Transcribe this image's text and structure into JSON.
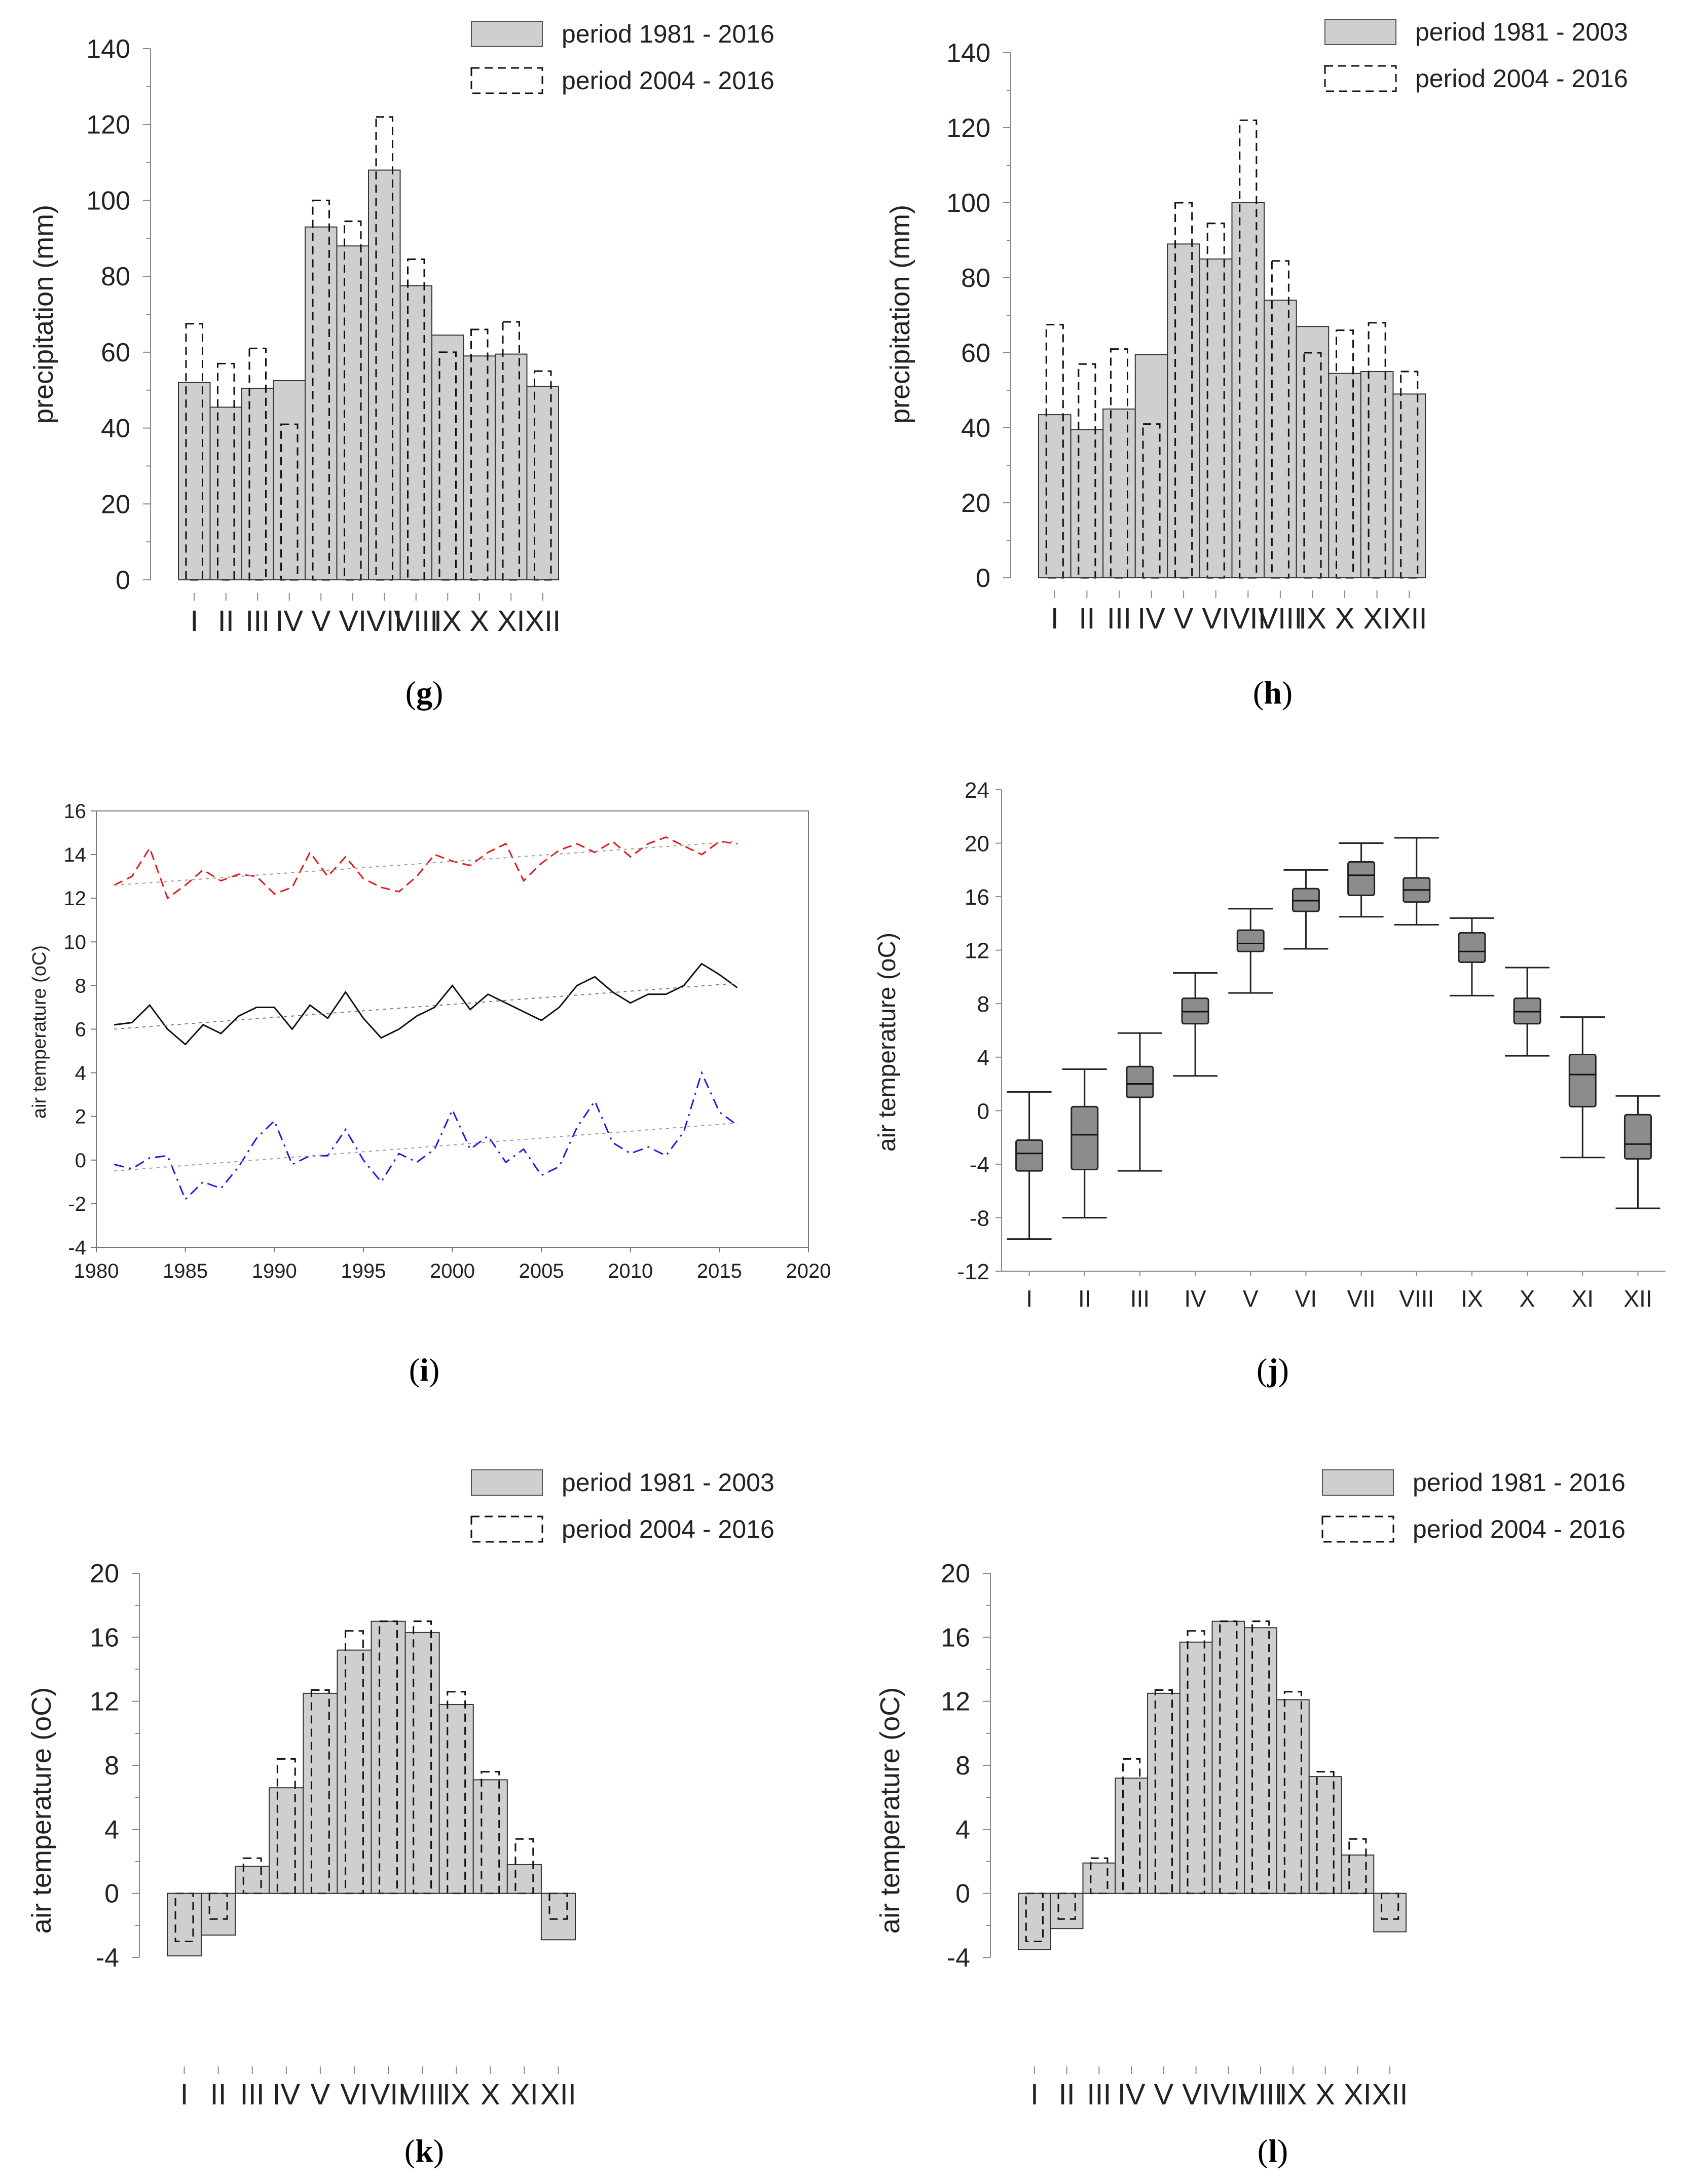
{
  "chart_data": [
    {
      "panel": "g",
      "type": "bar",
      "categories": [
        "I",
        "II",
        "III",
        "IV",
        "V",
        "VI",
        "VII",
        "VIII",
        "IX",
        "X",
        "XI",
        "XII"
      ],
      "series": [
        {
          "name": "period 1981 - 2016",
          "style": "filled",
          "values": [
            52,
            45.5,
            50.5,
            52.5,
            93,
            88,
            108,
            77.5,
            64.5,
            59,
            59.5,
            51
          ]
        },
        {
          "name": "period 2004 - 2016",
          "style": "dashed",
          "values": [
            67.5,
            57,
            61,
            41,
            100,
            94.5,
            122,
            84.5,
            60,
            66,
            68,
            55
          ]
        }
      ],
      "ylabel": "precipitation (mm)",
      "ylim": [
        0,
        140
      ],
      "yticks": [
        "0",
        "20",
        "40",
        "60",
        "80",
        "100",
        "120",
        "140"
      ],
      "panel_label": "g"
    },
    {
      "panel": "h",
      "type": "bar",
      "categories": [
        "I",
        "II",
        "III",
        "IV",
        "V",
        "VI",
        "VII",
        "VIII",
        "IX",
        "X",
        "XI",
        "XII"
      ],
      "series": [
        {
          "name": "period 1981 - 2003",
          "style": "filled",
          "values": [
            43.5,
            39.5,
            45,
            59.5,
            89,
            85,
            100,
            74,
            67,
            54.5,
            55,
            49
          ]
        },
        {
          "name": "period 2004 - 2016",
          "style": "dashed",
          "values": [
            67.5,
            57,
            61,
            41,
            100,
            94.5,
            122,
            84.5,
            60,
            66,
            68,
            55
          ]
        }
      ],
      "ylabel": "precipitation (mm)",
      "ylim": [
        0,
        140
      ],
      "yticks": [
        "0",
        "20",
        "40",
        "60",
        "80",
        "100",
        "120",
        "140"
      ],
      "panel_label": "h"
    },
    {
      "panel": "i",
      "type": "line",
      "x": [
        1981,
        1982,
        1983,
        1984,
        1985,
        1986,
        1987,
        1988,
        1989,
        1990,
        1991,
        1992,
        1993,
        1994,
        1995,
        1996,
        1997,
        1998,
        1999,
        2000,
        2001,
        2002,
        2003,
        2004,
        2005,
        2006,
        2007,
        2008,
        2009,
        2010,
        2011,
        2012,
        2013,
        2014,
        2015,
        2016
      ],
      "series": [
        {
          "name": "max",
          "color": "#e8141b",
          "dash": "dashed",
          "values": [
            12.6,
            13.0,
            14.3,
            12.0,
            12.6,
            13.3,
            12.8,
            13.1,
            13.0,
            12.2,
            12.5,
            14.1,
            13.0,
            13.9,
            12.9,
            12.5,
            12.3,
            13.0,
            14.0,
            13.7,
            13.5,
            14.1,
            14.5,
            12.8,
            13.6,
            14.2,
            14.5,
            14.1,
            14.6,
            13.9,
            14.5,
            14.8,
            14.4,
            14.0,
            14.6,
            14.5
          ]
        },
        {
          "name": "mean",
          "color": "#111111",
          "dash": "solid",
          "values": [
            6.2,
            6.3,
            7.1,
            6.0,
            5.3,
            6.2,
            5.8,
            6.6,
            7.0,
            7.0,
            6.0,
            7.1,
            6.5,
            7.7,
            6.5,
            5.6,
            6.0,
            6.6,
            7.0,
            8.0,
            6.9,
            7.6,
            7.2,
            6.8,
            6.4,
            7.0,
            8.0,
            8.4,
            7.7,
            7.2,
            7.6,
            7.6,
            8.0,
            9.0,
            8.5,
            7.9
          ]
        },
        {
          "name": "min",
          "color": "#1a1ae8",
          "dash": "dashdot",
          "values": [
            -0.2,
            -0.4,
            0.1,
            0.2,
            -1.8,
            -1.0,
            -1.3,
            -0.3,
            1.0,
            1.8,
            -0.2,
            0.2,
            0.2,
            1.4,
            0.0,
            -1.0,
            0.3,
            -0.1,
            0.5,
            2.3,
            0.5,
            1.1,
            -0.1,
            0.5,
            -0.7,
            -0.3,
            1.5,
            2.7,
            0.8,
            0.3,
            0.6,
            0.2,
            1.3,
            4.0,
            2.2,
            1.6
          ]
        },
        {
          "name": "trend max",
          "color": "#999999",
          "dash": "dotted",
          "values_at_ends": [
            12.6,
            14.6
          ]
        },
        {
          "name": "trend mean",
          "color": "#777777",
          "dash": "dotted",
          "values_at_ends": [
            6.0,
            8.1
          ]
        },
        {
          "name": "trend min",
          "color": "#999999",
          "dash": "dotted",
          "values_at_ends": [
            -0.5,
            1.7
          ]
        }
      ],
      "ylabel": "air temperature (oC)",
      "xlim": [
        1980,
        2020
      ],
      "ylim": [
        -4,
        16
      ],
      "xticks": [
        "1980",
        "1985",
        "1990",
        "1995",
        "2000",
        "2005",
        "2010",
        "2015",
        "2020"
      ],
      "yticks": [
        "-4",
        "-2",
        "0",
        "2",
        "4",
        "6",
        "8",
        "10",
        "12",
        "14",
        "16"
      ],
      "panel_label": "i"
    },
    {
      "panel": "j",
      "type": "box",
      "categories": [
        "I",
        "II",
        "III",
        "IV",
        "V",
        "VI",
        "VII",
        "VIII",
        "IX",
        "X",
        "XI",
        "XII"
      ],
      "boxes": [
        {
          "min": -9.6,
          "q1": -4.5,
          "median": -3.2,
          "q3": -2.2,
          "max": 1.4
        },
        {
          "min": -8.0,
          "q1": -4.4,
          "median": -1.8,
          "q3": 0.3,
          "max": 3.1
        },
        {
          "min": -4.5,
          "q1": 1.0,
          "median": 2.0,
          "q3": 3.3,
          "max": 5.8
        },
        {
          "min": 2.6,
          "q1": 6.5,
          "median": 7.4,
          "q3": 8.4,
          "max": 10.3
        },
        {
          "min": 8.8,
          "q1": 11.9,
          "median": 12.5,
          "q3": 13.5,
          "max": 15.1
        },
        {
          "min": 12.1,
          "q1": 14.9,
          "median": 15.7,
          "q3": 16.6,
          "max": 18.0
        },
        {
          "min": 14.5,
          "q1": 16.1,
          "median": 17.6,
          "q3": 18.6,
          "max": 20.0
        },
        {
          "min": 13.9,
          "q1": 15.6,
          "median": 16.5,
          "q3": 17.4,
          "max": 20.4
        },
        {
          "min": 8.6,
          "q1": 11.1,
          "median": 11.9,
          "q3": 13.3,
          "max": 14.4
        },
        {
          "min": 4.1,
          "q1": 6.5,
          "median": 7.4,
          "q3": 8.4,
          "max": 10.7
        },
        {
          "min": -3.5,
          "q1": 0.3,
          "median": 2.7,
          "q3": 4.2,
          "max": 7.0
        },
        {
          "min": -7.3,
          "q1": -3.6,
          "median": -2.5,
          "q3": -0.3,
          "max": 1.1
        }
      ],
      "ylabel": "air temperature (oC)",
      "ylim": [
        -12,
        24
      ],
      "yticks": [
        "-12",
        "-8",
        "-4",
        "0",
        "4",
        "8",
        "12",
        "16",
        "20",
        "24"
      ],
      "panel_label": "j"
    },
    {
      "panel": "k",
      "type": "bar",
      "categories": [
        "I",
        "II",
        "III",
        "IV",
        "V",
        "VI",
        "VII",
        "VIII",
        "IX",
        "X",
        "XI",
        "XII"
      ],
      "series": [
        {
          "name": "period 1981 - 2003",
          "style": "filled",
          "values": [
            -3.9,
            -2.6,
            1.7,
            6.6,
            12.5,
            15.2,
            17.0,
            16.3,
            11.8,
            7.1,
            1.8,
            -2.9
          ]
        },
        {
          "name": "period 2004 - 2016",
          "style": "dashed",
          "values": [
            -3.0,
            -1.6,
            2.2,
            8.4,
            12.7,
            16.4,
            17.0,
            17.0,
            12.6,
            7.6,
            3.4,
            -1.6
          ]
        }
      ],
      "ylabel": "air temperature (oC)",
      "ylim": [
        -4,
        20
      ],
      "yticks": [
        "-4",
        "0",
        "4",
        "8",
        "12",
        "16",
        "20"
      ],
      "panel_label": "k"
    },
    {
      "panel": "l",
      "type": "bar",
      "categories": [
        "I",
        "II",
        "III",
        "IV",
        "V",
        "VI",
        "VII",
        "VIII",
        "IX",
        "X",
        "XI",
        "XII"
      ],
      "series": [
        {
          "name": "period 1981 - 2016",
          "style": "filled",
          "values": [
            -3.5,
            -2.2,
            1.9,
            7.2,
            12.5,
            15.7,
            17.0,
            16.6,
            12.1,
            7.3,
            2.4,
            -2.4
          ]
        },
        {
          "name": "period 2004 - 2016",
          "style": "dashed",
          "values": [
            -3.0,
            -1.6,
            2.2,
            8.4,
            12.7,
            16.4,
            17.0,
            17.0,
            12.6,
            7.6,
            3.4,
            -1.6
          ]
        }
      ],
      "ylabel": "air temperature (oC)",
      "ylim": [
        -4,
        20
      ],
      "yticks": [
        "-4",
        "0",
        "4",
        "8",
        "12",
        "16",
        "20"
      ],
      "panel_label": "l"
    }
  ]
}
